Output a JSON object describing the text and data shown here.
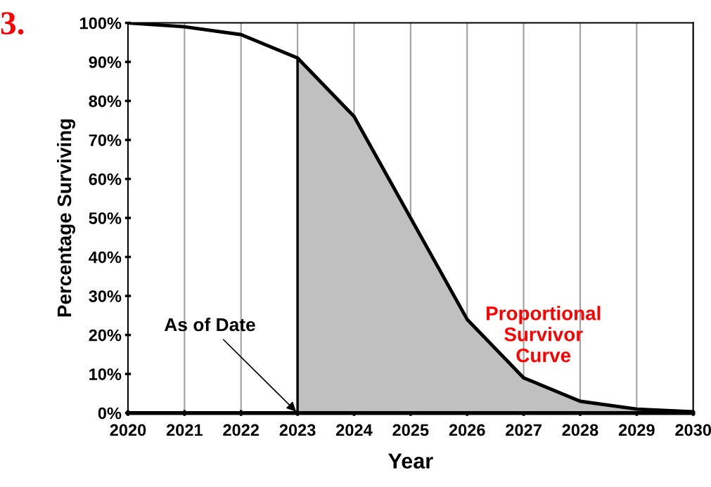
{
  "chart_data": {
    "type": "line",
    "xlabel": "Year",
    "ylabel": "Percentage Surviving",
    "series": [
      {
        "type": "area",
        "color": "#c0c0c0",
        "x": [
          2023,
          2024,
          2025,
          2026,
          2027,
          2028,
          2029,
          2030
        ],
        "values": [
          91,
          76,
          50,
          24,
          9,
          3,
          1,
          0.3
        ]
      },
      {
        "color": "#000000",
        "x": [
          2020,
          2021,
          2022,
          2023,
          2024,
          2025,
          2026,
          2027,
          2028,
          2029,
          2030
        ],
        "values": [
          100,
          99,
          97,
          91,
          76,
          50,
          24,
          9,
          3,
          1,
          0.3
        ]
      }
    ],
    "xlim": [
      2020,
      2030
    ],
    "xticks": [
      2020,
      2021,
      2022,
      2023,
      2024,
      2025,
      2026,
      2027,
      2028,
      2029,
      2030
    ],
    "ylim": [
      0,
      100
    ],
    "yticks": [
      {
        "value": 0,
        "label": "0%"
      },
      {
        "value": 10,
        "label": "10%"
      },
      {
        "value": 20,
        "label": "20%"
      },
      {
        "value": 30,
        "label": "30%"
      },
      {
        "value": 40,
        "label": "40%"
      },
      {
        "value": 50,
        "label": "50%"
      },
      {
        "value": 60,
        "label": "60%"
      },
      {
        "value": 70,
        "label": "70%"
      },
      {
        "value": 80,
        "label": "80%"
      },
      {
        "value": 90,
        "label": "90%"
      },
      {
        "value": 100,
        "label": "100%"
      }
    ],
    "grid": "x",
    "legend": false,
    "marker": "none",
    "line_style": "solid",
    "annotations": [
      {
        "text": "As of Date",
        "x": 2023,
        "y": 0
      },
      "Proportional\nSurvivor\nCurve",
      "3."
    ]
  }
}
